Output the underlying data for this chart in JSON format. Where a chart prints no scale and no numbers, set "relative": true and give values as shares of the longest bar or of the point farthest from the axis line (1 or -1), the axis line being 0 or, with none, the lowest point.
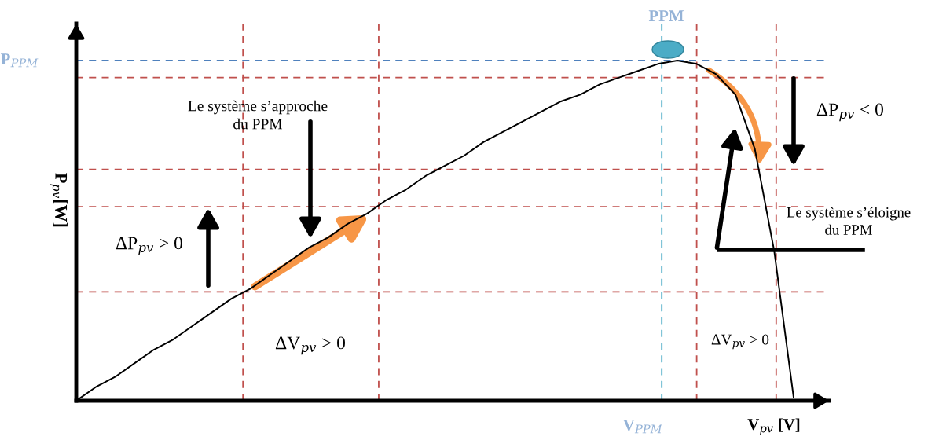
{
  "chart_data": {
    "type": "line",
    "relative": true,
    "xlabel": "V$_{pv}$ [V]",
    "ylabel": "P$_{pv}$[W]",
    "categories": [
      null,
      null,
      null,
      null,
      null,
      null,
      null,
      null,
      null,
      null,
      null,
      null,
      null,
      null,
      null,
      null,
      null,
      null,
      null,
      null,
      null,
      null,
      null,
      null,
      null,
      null,
      null,
      null,
      null,
      null,
      null,
      null,
      null,
      null,
      null,
      null,
      null,
      null
    ],
    "series": [
      {
        "color": "#000000",
        "values": [
          0,
          0.04,
          0.07,
          0.11,
          0.15,
          0.18,
          0.22,
          0.26,
          0.3,
          0.33,
          0.37,
          0.41,
          0.45,
          0.48,
          0.52,
          0.55,
          0.59,
          0.62,
          0.66,
          0.69,
          0.72,
          0.76,
          0.79,
          0.82,
          0.85,
          0.88,
          0.9,
          0.93,
          0.95,
          0.97,
          0.99,
          1,
          0.99,
          0.96,
          0.9,
          0.74,
          0.44,
          0.01
        ]
      }
    ],
    "ref_lines": [
      {
        "axis": "y",
        "value": 1,
        "label": "P$_{PPM}$",
        "color": "#4f81bd",
        "line_style": "dashed"
      },
      {
        "axis": "y",
        "value": 0.32,
        "color": "#c0504d",
        "line_style": "dashed"
      },
      {
        "axis": "y",
        "value": 0.57,
        "color": "#c0504d",
        "line_style": "dashed"
      },
      {
        "axis": "y",
        "value": 0.95,
        "color": "#c0504d",
        "line_style": "dashed"
      },
      {
        "axis": "y",
        "value": 0.68,
        "color": "#c0504d",
        "line_style": "dashed"
      }
    ],
    "annotations": [
      "V$_{PPM}$",
      "PPM",
      "Le système s’approche\ndu PPM",
      "ΔP$_{pv}$ > 0",
      "ΔV$_{pv}$ > 0",
      "ΔP$_{pv}$ < 0",
      "Le système s’éloigne\ndu PPM",
      "ΔV$_{pv}$ > 0"
    ],
    "grid": false,
    "legend": false,
    "marker": "none",
    "line_style": "solid"
  }
}
